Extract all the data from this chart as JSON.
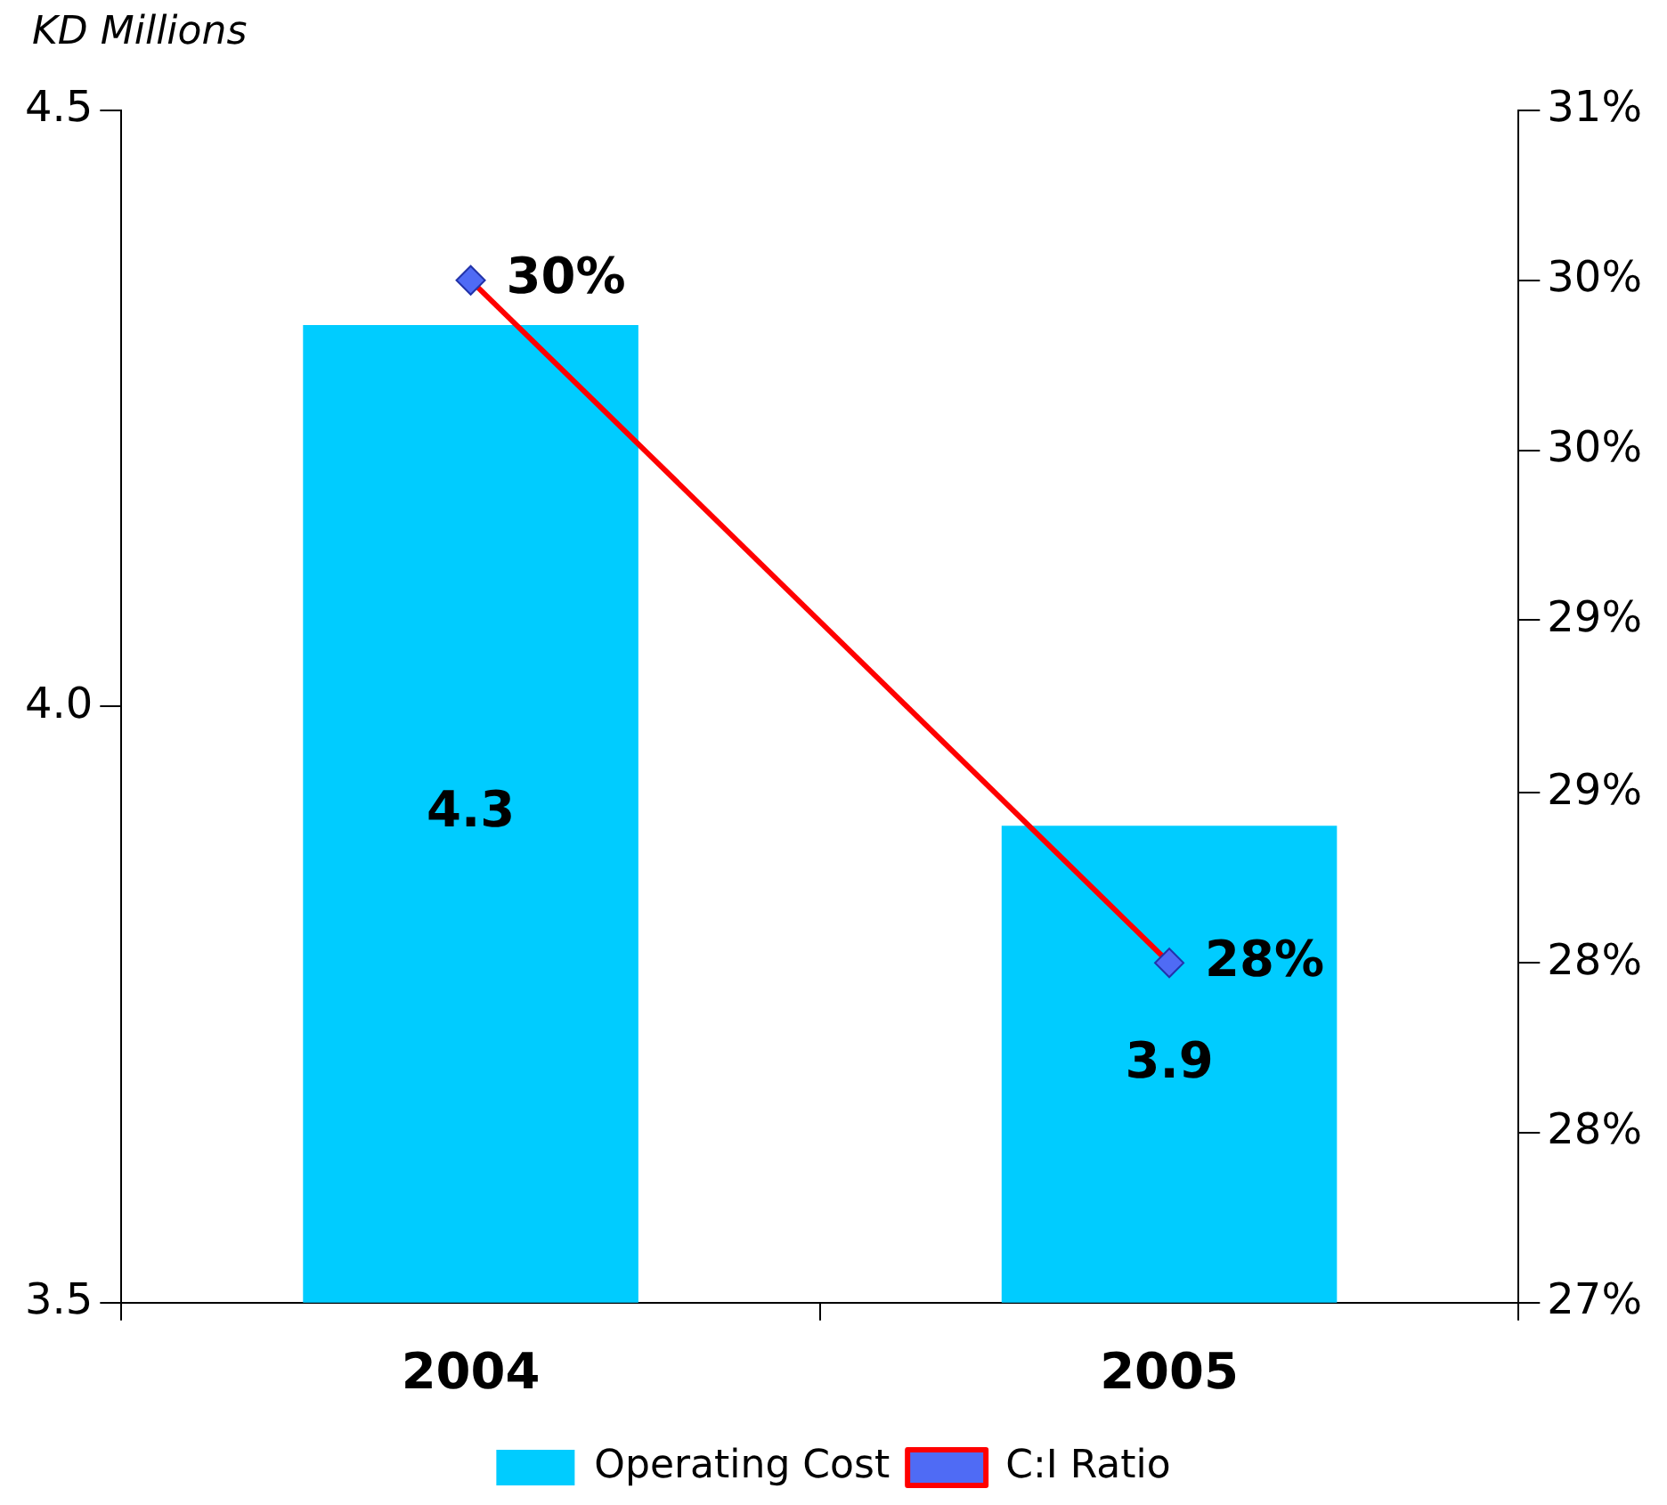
{
  "chart_data": {
    "type": "bar",
    "ylabel": "KD Millions",
    "categories": [
      "2004",
      "2005"
    ],
    "series": [
      {
        "name": "Operating Cost",
        "color": "#00ccff",
        "values": [
          4.32,
          3.9
        ],
        "value_labels": [
          "4.3",
          "3.9"
        ]
      },
      {
        "name": "C:I Ratio",
        "type": "line",
        "axis": "y2",
        "color": "#ff0000",
        "marker": "diamond",
        "values": [
          30.43,
          28.14
        ],
        "value_labels": [
          "30%",
          "28%"
        ]
      }
    ],
    "ylim": [
      3.5,
      4.5
    ],
    "yticks": [
      3.5,
      {
        "value": 4,
        "label": "4.0"
      },
      4.5
    ],
    "y2lim": [
      27,
      31
    ],
    "y2ticks": [
      {
        "value": 27,
        "label": "27%"
      },
      {
        "value": 27.57,
        "label": "28%"
      },
      {
        "value": 28.14,
        "label": "28%"
      },
      {
        "value": 28.71,
        "label": "29%"
      },
      {
        "value": 29.29,
        "label": "29%"
      },
      {
        "value": 29.86,
        "label": "30%"
      },
      {
        "value": 30.43,
        "label": "30%"
      },
      {
        "value": 31,
        "label": "31%"
      }
    ],
    "legend": "bottom",
    "grid": false
  }
}
